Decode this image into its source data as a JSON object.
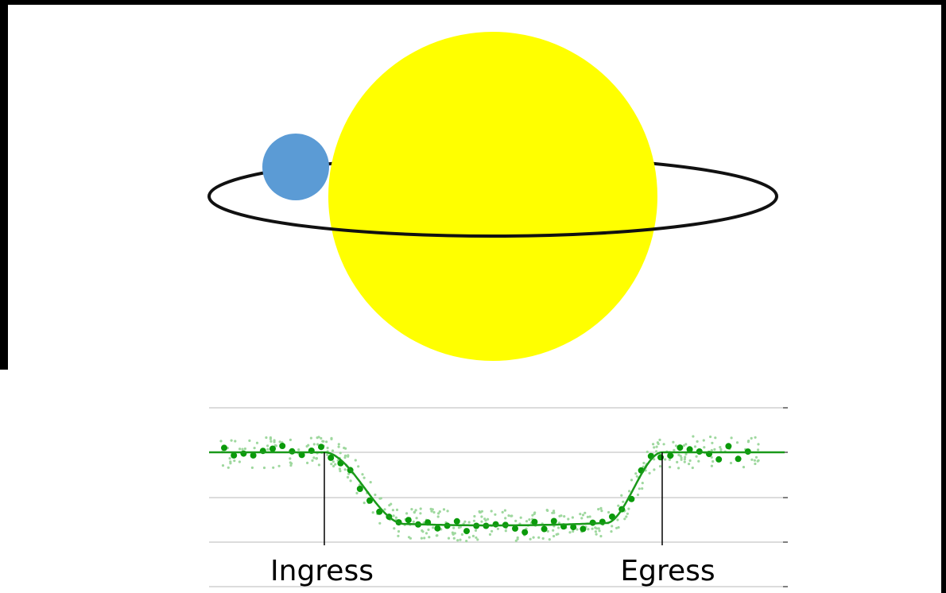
{
  "labels": {
    "ingress": "Ingress",
    "egress": "Egress"
  }
}
